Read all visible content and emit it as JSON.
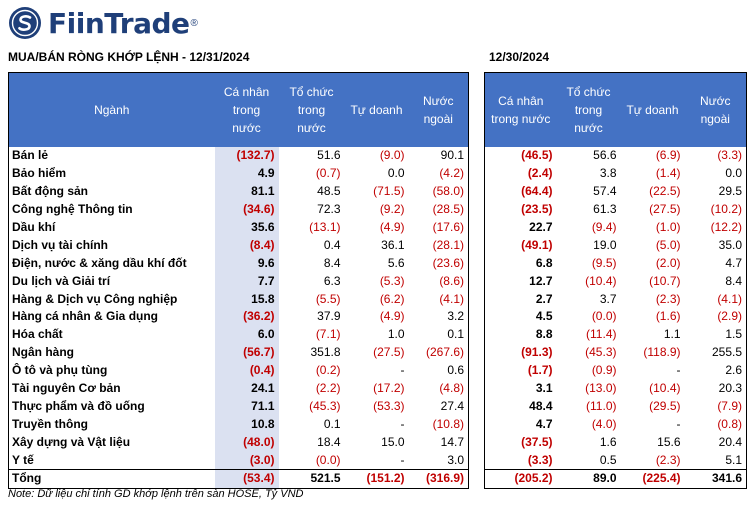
{
  "brand": {
    "name": "FiinTrade",
    "reg": "®",
    "logo_icon": "fiin-s-circle-icon",
    "color": "#1f3f79"
  },
  "left": {
    "title": "MUA/BÁN RÒNG KHỚP LỆNH - 12/31/2024",
    "headers": {
      "sector": "Ngành",
      "individual": [
        "Cá nhân",
        "trong",
        "nước"
      ],
      "institution": [
        "Tổ chức",
        "trong",
        "nước"
      ],
      "proprietary": [
        "Tự doanh"
      ],
      "foreign": [
        "Nước",
        "ngoài"
      ]
    }
  },
  "right": {
    "title": "12/30/2024",
    "headers": {
      "individual": [
        "Cá nhân",
        "trong nước"
      ],
      "institution": [
        "Tổ chức",
        "trong",
        "nước"
      ],
      "proprietary": [
        "Tự doanh"
      ],
      "foreign": [
        "Nước",
        "ngoài"
      ]
    }
  },
  "rows": [
    {
      "sector": "Bán lẻ",
      "d1": [
        "(132.7)",
        "51.6",
        "(9.0)",
        "90.1"
      ],
      "d2": [
        "(46.5)",
        "56.6",
        "(6.9)",
        "(3.3)"
      ]
    },
    {
      "sector": "Bảo hiểm",
      "d1": [
        "4.9",
        "(0.7)",
        "0.0",
        "(4.2)"
      ],
      "d2": [
        "(2.4)",
        "3.8",
        "(1.4)",
        "0.0"
      ]
    },
    {
      "sector": "Bất động sản",
      "d1": [
        "81.1",
        "48.5",
        "(71.5)",
        "(58.0)"
      ],
      "d2": [
        "(64.4)",
        "57.4",
        "(22.5)",
        "29.5"
      ]
    },
    {
      "sector": "Công nghệ Thông tin",
      "d1": [
        "(34.6)",
        "72.3",
        "(9.2)",
        "(28.5)"
      ],
      "d2": [
        "(23.5)",
        "61.3",
        "(27.5)",
        "(10.2)"
      ]
    },
    {
      "sector": "Dầu khí",
      "d1": [
        "35.6",
        "(13.1)",
        "(4.9)",
        "(17.6)"
      ],
      "d2": [
        "22.7",
        "(9.4)",
        "(1.0)",
        "(12.2)"
      ]
    },
    {
      "sector": "Dịch vụ tài chính",
      "d1": [
        "(8.4)",
        "0.4",
        "36.1",
        "(28.1)"
      ],
      "d2": [
        "(49.1)",
        "19.0",
        "(5.0)",
        "35.0"
      ]
    },
    {
      "sector": "Điện, nước & xăng dầu khí đốt",
      "d1": [
        "9.6",
        "8.4",
        "5.6",
        "(23.6)"
      ],
      "d2": [
        "6.8",
        "(9.5)",
        "(2.0)",
        "4.7"
      ]
    },
    {
      "sector": "Du lịch và Giải trí",
      "d1": [
        "7.7",
        "6.3",
        "(5.3)",
        "(8.6)"
      ],
      "d2": [
        "12.7",
        "(10.4)",
        "(10.7)",
        "8.4"
      ]
    },
    {
      "sector": "Hàng & Dịch vụ Công nghiệp",
      "d1": [
        "15.8",
        "(5.5)",
        "(6.2)",
        "(4.1)"
      ],
      "d2": [
        "2.7",
        "3.7",
        "(2.3)",
        "(4.1)"
      ]
    },
    {
      "sector": "Hàng cá nhân & Gia dụng",
      "d1": [
        "(36.2)",
        "37.9",
        "(4.9)",
        "3.2"
      ],
      "d2": [
        "4.5",
        "(0.0)",
        "(1.6)",
        "(2.9)"
      ]
    },
    {
      "sector": "Hóa chất",
      "d1": [
        "6.0",
        "(7.1)",
        "1.0",
        "0.1"
      ],
      "d2": [
        "8.8",
        "(11.4)",
        "1.1",
        "1.5"
      ]
    },
    {
      "sector": "Ngân hàng",
      "d1": [
        "(56.7)",
        "351.8",
        "(27.5)",
        "(267.6)"
      ],
      "d2": [
        "(91.3)",
        "(45.3)",
        "(118.9)",
        "255.5"
      ]
    },
    {
      "sector": "Ô tô và phụ tùng",
      "d1": [
        "(0.4)",
        "(0.2)",
        "-",
        "0.6"
      ],
      "d2": [
        "(1.7)",
        "(0.9)",
        "-",
        "2.6"
      ]
    },
    {
      "sector": "Tài nguyên Cơ bản",
      "d1": [
        "24.1",
        "(2.2)",
        "(17.2)",
        "(4.8)"
      ],
      "d2": [
        "3.1",
        "(13.0)",
        "(10.4)",
        "20.3"
      ]
    },
    {
      "sector": "Thực phẩm và đồ uống",
      "d1": [
        "71.1",
        "(45.3)",
        "(53.3)",
        "27.4"
      ],
      "d2": [
        "48.4",
        "(11.0)",
        "(29.5)",
        "(7.9)"
      ]
    },
    {
      "sector": "Truyền thông",
      "d1": [
        "10.8",
        "0.1",
        "-",
        "(10.8)"
      ],
      "d2": [
        "4.7",
        "(4.0)",
        "-",
        "(0.8)"
      ]
    },
    {
      "sector": "Xây dựng và Vật liệu",
      "d1": [
        "(48.0)",
        "18.4",
        "15.0",
        "14.7"
      ],
      "d2": [
        "(37.5)",
        "1.6",
        "15.6",
        "20.4"
      ]
    },
    {
      "sector": "Y tế",
      "d1": [
        "(3.0)",
        "(0.0)",
        "-",
        "3.0"
      ],
      "d2": [
        "(3.3)",
        "0.5",
        "(2.3)",
        "5.1"
      ]
    }
  ],
  "total": {
    "sector": "Tổng",
    "d1": [
      "(53.4)",
      "521.5",
      "(151.2)",
      "(316.9)"
    ],
    "d2": [
      "(205.2)",
      "89.0",
      "(225.4)",
      "341.6"
    ]
  },
  "note": "Note: Dữ liệu chỉ tính GD khớp lệnh trên sàn HOSE, Tỷ VND",
  "colors": {
    "header_bg": "#4472c4",
    "highlight_bg": "#dbe1f1",
    "negative": "#c00000"
  }
}
